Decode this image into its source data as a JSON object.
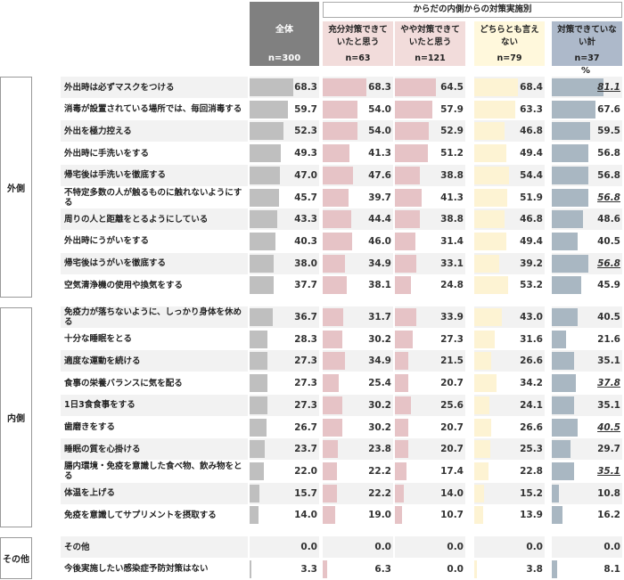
{
  "header": {
    "all_label": "全体",
    "all_n": "n=300",
    "group_title": "からだの内側からの対策実施別",
    "percent_unit": "%"
  },
  "columns": [
    {
      "label": "充分対策できていたと思う",
      "n": "n=63",
      "bg": "#f2dcdb",
      "bar": "#e6c3c6"
    },
    {
      "label": "やや対策できていたと思う",
      "n": "n=121",
      "bg": "#f2dcdb",
      "bar": "#e6c3c6"
    },
    {
      "label": "どちらとも言えない",
      "n": "n=79",
      "bg": "#fff8dc",
      "bar": "#fdf3d3"
    },
    {
      "label": "対策できていない計",
      "n": "n=37",
      "bg": "#adb9ca",
      "bar": "#a9b7c2"
    }
  ],
  "colors": {
    "all_bar": "#bfbfbf",
    "stripe": "#f2f2f2"
  },
  "groups": [
    {
      "label": "外側"
    },
    {
      "label": "内側"
    },
    {
      "label": "その他"
    }
  ],
  "chart_data": {
    "type": "table",
    "series_names": [
      "全体",
      "充分対策できていたと思う",
      "やや対策できていたと思う",
      "どちらとも言えない",
      "対策できていない計"
    ],
    "unit": "%",
    "rows": [
      {
        "group": "外側",
        "label": "外出時は必ずマスクをつける",
        "values": [
          68.3,
          68.3,
          64.5,
          68.4,
          81.1
        ],
        "highlight": [
          4
        ]
      },
      {
        "group": "外側",
        "label": "消毒が設置されている場所では、毎回消毒する",
        "values": [
          59.7,
          54.0,
          57.9,
          63.3,
          67.6
        ],
        "highlight": []
      },
      {
        "group": "外側",
        "label": "外出を極力控える",
        "values": [
          52.3,
          54.0,
          52.9,
          46.8,
          59.5
        ],
        "highlight": []
      },
      {
        "group": "外側",
        "label": "外出時に手洗いをする",
        "values": [
          49.3,
          41.3,
          51.2,
          49.4,
          56.8
        ],
        "highlight": []
      },
      {
        "group": "外側",
        "label": "帰宅後は手洗いを徹底する",
        "values": [
          47.0,
          47.6,
          38.8,
          54.4,
          56.8
        ],
        "highlight": []
      },
      {
        "group": "外側",
        "label": "不特定多数の人が触るものに触れないようにする",
        "values": [
          45.7,
          39.7,
          41.3,
          51.9,
          56.8
        ],
        "highlight": [
          4
        ]
      },
      {
        "group": "外側",
        "label": "周りの人と距離をとるようにしている",
        "values": [
          43.3,
          44.4,
          38.8,
          46.8,
          48.6
        ],
        "highlight": []
      },
      {
        "group": "外側",
        "label": "外出時にうがいをする",
        "values": [
          40.3,
          46.0,
          31.4,
          49.4,
          40.5
        ],
        "highlight": []
      },
      {
        "group": "外側",
        "label": "帰宅後はうがいを徹底する",
        "values": [
          38.0,
          34.9,
          33.1,
          39.2,
          56.8
        ],
        "highlight": [
          4
        ]
      },
      {
        "group": "外側",
        "label": "空気清浄機の使用や換気をする",
        "values": [
          37.7,
          38.1,
          24.8,
          53.2,
          45.9
        ],
        "highlight": []
      },
      {
        "group": "内側",
        "label": "免疫力が落ちないように、しっかり身体を休める",
        "values": [
          36.7,
          31.7,
          33.9,
          43.0,
          40.5
        ],
        "highlight": []
      },
      {
        "group": "内側",
        "label": "十分な睡眠をとる",
        "values": [
          28.3,
          30.2,
          27.3,
          31.6,
          21.6
        ],
        "highlight": []
      },
      {
        "group": "内側",
        "label": "適度な運動を続ける",
        "values": [
          27.3,
          34.9,
          21.5,
          26.6,
          35.1
        ],
        "highlight": []
      },
      {
        "group": "内側",
        "label": "食事の栄養バランスに気を配る",
        "values": [
          27.3,
          25.4,
          20.7,
          34.2,
          37.8
        ],
        "highlight": [
          4
        ]
      },
      {
        "group": "内側",
        "label": "1日3食食事をする",
        "values": [
          27.3,
          30.2,
          25.6,
          24.1,
          35.1
        ],
        "highlight": []
      },
      {
        "group": "内側",
        "label": "歯磨きをする",
        "values": [
          26.7,
          30.2,
          20.7,
          26.6,
          40.5
        ],
        "highlight": [
          4
        ]
      },
      {
        "group": "内側",
        "label": "睡眠の質を心掛ける",
        "values": [
          23.7,
          23.8,
          20.7,
          25.3,
          29.7
        ],
        "highlight": []
      },
      {
        "group": "内側",
        "label": "腸内環境・免疫を意識した食べ物、飲み物をとる",
        "values": [
          22.0,
          22.2,
          17.4,
          22.8,
          35.1
        ],
        "highlight": [
          4
        ]
      },
      {
        "group": "内側",
        "label": "体温を上げる",
        "values": [
          15.7,
          22.2,
          14.0,
          15.2,
          10.8
        ],
        "highlight": []
      },
      {
        "group": "内側",
        "label": "免疫を意識してサプリメントを摂取する",
        "values": [
          14.0,
          19.0,
          10.7,
          13.9,
          16.2
        ],
        "highlight": []
      },
      {
        "group": "その他",
        "label": "その他",
        "values": [
          0.0,
          0.0,
          0.0,
          0.0,
          0.0
        ],
        "highlight": []
      },
      {
        "group": "その他",
        "label": "今後実施したい感染症予防対策はない",
        "values": [
          3.3,
          6.3,
          0.0,
          3.8,
          8.1
        ],
        "highlight": []
      }
    ]
  }
}
